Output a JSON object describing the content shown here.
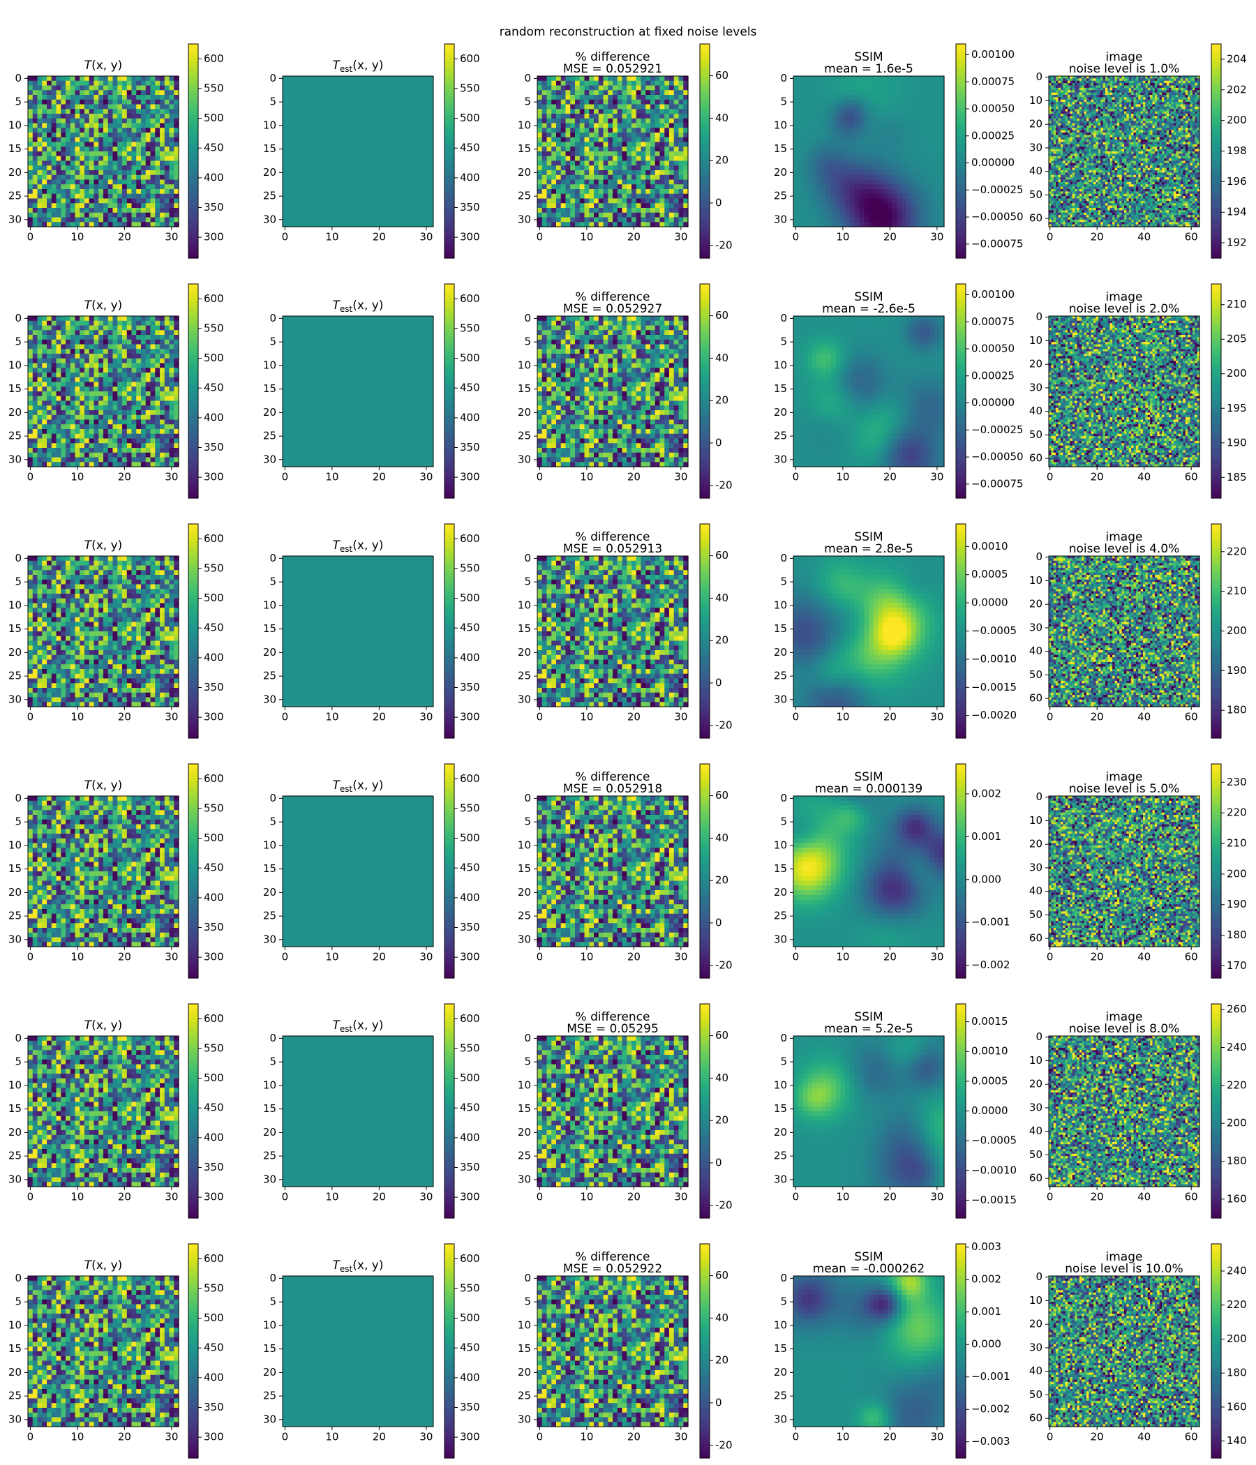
{
  "figure": {
    "title": "random reconstruction at fixed noise levels"
  },
  "chart_data": {
    "type": "heatmap",
    "title": "random reconstruction at fixed noise levels",
    "colormap": "viridis",
    "grid": false,
    "columns": [
      {
        "kind": "T",
        "title_lines": [
          "T(x, y)"
        ],
        "size": 32,
        "vmin": 265,
        "vmax": 625,
        "cb_ticks": [
          300,
          350,
          400,
          450,
          500,
          550,
          600
        ],
        "xticks": [
          0,
          10,
          20,
          30
        ],
        "yticks": [
          0,
          5,
          10,
          15,
          20,
          25,
          30
        ]
      },
      {
        "kind": "Test",
        "title_lines": [
          "T_est(x, y)"
        ],
        "size": 32,
        "vmin": 265,
        "vmax": 625,
        "fill_value": 445,
        "cb_ticks": [
          300,
          350,
          400,
          450,
          500,
          550,
          600
        ],
        "xticks": [
          0,
          10,
          20,
          30
        ],
        "yticks": [
          0,
          5,
          10,
          15,
          20,
          25,
          30
        ]
      },
      {
        "kind": "diff",
        "title_prefix": "% difference",
        "size": 32,
        "vmin": -26,
        "vmax": 75,
        "cb_ticks": [
          -20,
          0,
          20,
          40,
          60
        ],
        "xticks": [
          0,
          10,
          20,
          30
        ],
        "yticks": [
          0,
          5,
          10,
          15,
          20,
          25,
          30
        ]
      },
      {
        "kind": "ssim",
        "title_prefix": "SSIM",
        "size": 32,
        "xticks": [
          0,
          10,
          20,
          30
        ],
        "yticks": [
          0,
          5,
          10,
          15,
          20,
          25,
          30
        ]
      },
      {
        "kind": "image",
        "title_prefix": "image",
        "size": 64,
        "xticks": [
          0,
          20,
          40,
          60
        ],
        "yticks": [
          0,
          10,
          20,
          30,
          40,
          50,
          60
        ]
      }
    ],
    "rows": [
      {
        "mse": "MSE = 0.052921",
        "ssim_mean": "mean = 1.6e-5",
        "noise": "noise level is 1.0%",
        "ssim_range": [
          -0.00088,
          0.0011
        ],
        "ssim_ticks": [
          "0.00100",
          "0.00075",
          "0.00050",
          "0.00025",
          "0.00000",
          "−0.00025",
          "−0.00050",
          "−0.00075"
        ],
        "ssim_tick_values": [
          0.001,
          0.00075,
          0.0005,
          0.00025,
          0,
          -0.00025,
          -0.0005,
          -0.00075
        ],
        "image_range": [
          191,
          205
        ],
        "image_ticks": [
          204,
          202,
          200,
          198,
          196,
          194,
          192
        ]
      },
      {
        "mse": "MSE = 0.052927",
        "ssim_mean": "mean = -2.6e-5",
        "noise": "noise level is 2.0%",
        "ssim_range": [
          -0.00088,
          0.0011
        ],
        "ssim_ticks": [
          "0.00100",
          "0.00075",
          "0.00050",
          "0.00025",
          "0.00000",
          "−0.00025",
          "−0.00050",
          "−0.00075"
        ],
        "ssim_tick_values": [
          0.001,
          0.00075,
          0.0005,
          0.00025,
          0,
          -0.00025,
          -0.0005,
          -0.00075
        ],
        "image_range": [
          182,
          213
        ],
        "image_ticks": [
          210,
          205,
          200,
          195,
          190,
          185
        ]
      },
      {
        "mse": "MSE = 0.052913",
        "ssim_mean": "mean = 2.8e-5",
        "noise": "noise level is 4.0%",
        "ssim_range": [
          -0.0024,
          0.0014
        ],
        "ssim_ticks": [
          "0.0010",
          "0.0005",
          "0.0000",
          "−0.0005",
          "−0.0010",
          "−0.0015",
          "−0.0020"
        ],
        "ssim_tick_values": [
          0.001,
          0.0005,
          0,
          -0.0005,
          -0.001,
          -0.0015,
          -0.002
        ],
        "image_range": [
          173,
          227
        ],
        "image_ticks": [
          220,
          210,
          200,
          190,
          180
        ]
      },
      {
        "mse": "MSE = 0.052918",
        "ssim_mean": "mean = 0.000139",
        "noise": "noise level is 5.0%",
        "ssim_range": [
          -0.0023,
          0.0027
        ],
        "ssim_ticks": [
          "0.002",
          "0.001",
          "0.000",
          "−0.001",
          "−0.002"
        ],
        "ssim_tick_values": [
          0.002,
          0.001,
          0,
          -0.001,
          -0.002
        ],
        "image_range": [
          166,
          236
        ],
        "image_ticks": [
          230,
          220,
          210,
          200,
          190,
          180,
          170
        ]
      },
      {
        "mse": "MSE = 0.05295",
        "ssim_mean": "mean = 5.2e-5",
        "noise": "noise level is 8.0%",
        "ssim_range": [
          -0.0018,
          0.0018
        ],
        "ssim_ticks": [
          "0.0015",
          "0.0010",
          "0.0005",
          "0.0000",
          "−0.0005",
          "−0.0010",
          "−0.0015"
        ],
        "ssim_tick_values": [
          0.0015,
          0.001,
          0.0005,
          0,
          -0.0005,
          -0.001,
          -0.0015
        ],
        "image_range": [
          150,
          263
        ],
        "image_ticks": [
          260,
          240,
          220,
          200,
          180,
          160
        ]
      },
      {
        "mse": "MSE = 0.052922",
        "ssim_mean": "mean = -0.000262",
        "noise": "noise level is 10.0%",
        "ssim_range": [
          -0.0035,
          0.0031
        ],
        "ssim_ticks": [
          "0.003",
          "0.002",
          "0.001",
          "0.000",
          "−0.001",
          "−0.002",
          "−0.003"
        ],
        "ssim_tick_values": [
          0.003,
          0.002,
          0.001,
          0,
          -0.001,
          -0.002,
          -0.003
        ],
        "image_range": [
          130,
          256
        ],
        "image_ticks": [
          240,
          220,
          200,
          180,
          160,
          140
        ]
      }
    ]
  }
}
